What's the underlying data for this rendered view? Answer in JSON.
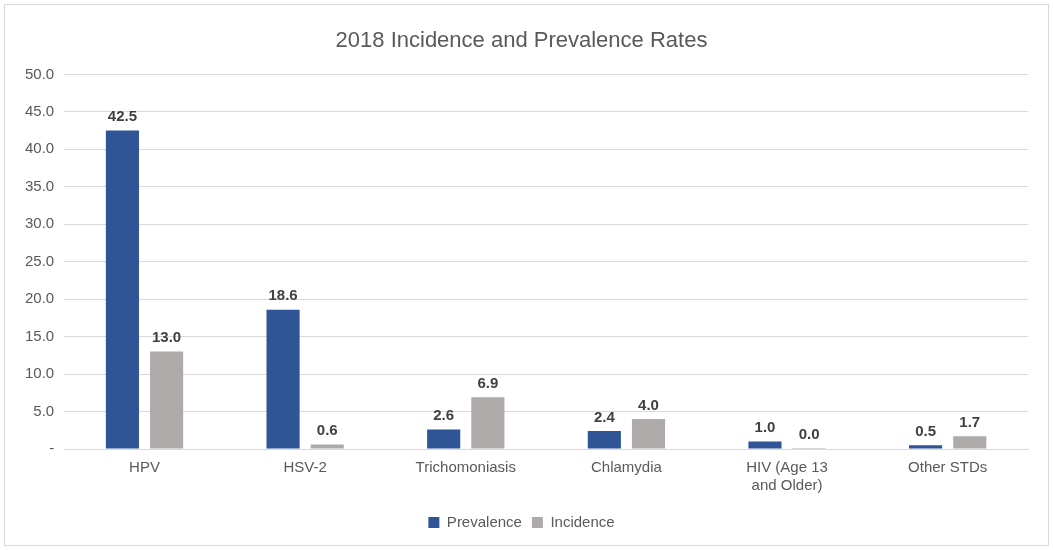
{
  "chart_data": {
    "type": "bar",
    "title": "2018 Incidence and Prevalence Rates",
    "categories": [
      "HPV",
      "HSV-2",
      "Trichomoniasis",
      "Chlamydia",
      "HIV (Age 13 and Older)",
      "Other STDs"
    ],
    "series": [
      {
        "name": "Prevalence",
        "color": "#2f5597",
        "values": [
          42.5,
          18.6,
          2.6,
          2.4,
          1.0,
          0.5
        ],
        "value_labels": [
          "42.5",
          "18.6",
          "2.6",
          "2.4",
          "1.0",
          "0.5"
        ]
      },
      {
        "name": "Incidence",
        "color": "#aeaaaa",
        "values": [
          13.0,
          0.6,
          6.9,
          4.0,
          0.0,
          1.7
        ],
        "value_labels": [
          "13.0",
          "0.6",
          "6.9",
          "4.0",
          "0.0",
          "1.7"
        ]
      }
    ],
    "ylim": [
      0,
      50
    ],
    "yticks": [
      {
        "value": 0,
        "label": "-"
      },
      {
        "value": 5,
        "label": "5.0"
      },
      {
        "value": 10,
        "label": "10.0"
      },
      {
        "value": 15,
        "label": "15.0"
      },
      {
        "value": 20,
        "label": "20.0"
      },
      {
        "value": 25,
        "label": "25.0"
      },
      {
        "value": 30,
        "label": "30.0"
      },
      {
        "value": 35,
        "label": "35.0"
      },
      {
        "value": 40,
        "label": "40.0"
      },
      {
        "value": 45,
        "label": "45.0"
      },
      {
        "value": 50,
        "label": "50.0"
      }
    ],
    "grid": "y",
    "legend": "bottom"
  }
}
